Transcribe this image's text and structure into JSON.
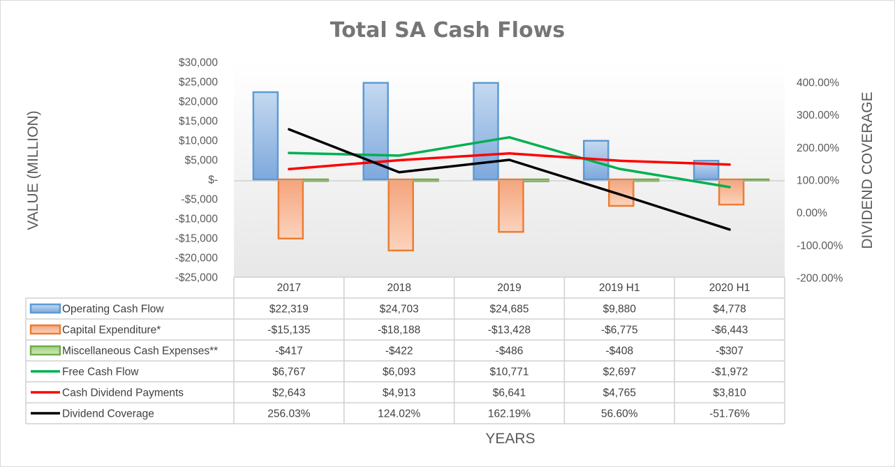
{
  "chart_data": {
    "type": "bar",
    "title": "Total SA Cash Flows",
    "xlabel": "YEARS",
    "ylabel": "VALUE (MILLION)",
    "y2label": "DIVIDEND COVERAGE",
    "categories": [
      "2017",
      "2018",
      "2019",
      "2019 H1",
      "2020 H1"
    ],
    "ylim": [
      -25000,
      30000
    ],
    "y2lim": [
      -200,
      400
    ],
    "yticks": [
      "$30,000",
      "$25,000",
      "$20,000",
      "$15,000",
      "$10,000",
      "$5,000",
      "$-",
      "-$5,000",
      "-$10,000",
      "-$15,000",
      "-$20,000",
      "-$25,000"
    ],
    "y2ticks": [
      "400.00%",
      "300.00%",
      "200.00%",
      "100.00%",
      "0.00%",
      "-100.00%",
      "-200.00%"
    ],
    "bar_series": [
      {
        "name": "Operating Cash Flow",
        "values": [
          22319,
          24703,
          24685,
          9880,
          4778
        ],
        "labels": [
          "$22,319",
          "$24,703",
          "$24,685",
          "$9,880",
          "$4,778"
        ],
        "color": "#5b9bd5",
        "fill": "#a9c7e8"
      },
      {
        "name": "Capital Expenditure*",
        "values": [
          -15135,
          -18188,
          -13428,
          -6775,
          -6443
        ],
        "labels": [
          "-$15,135",
          "-$18,188",
          "-$13,428",
          "-$6,775",
          "-$6,443"
        ],
        "color": "#ed7d31",
        "fill": "#f8c0a0"
      },
      {
        "name": "Miscellaneous Cash Expenses**",
        "values": [
          -417,
          -422,
          -486,
          -408,
          -307
        ],
        "labels": [
          "-$417",
          "-$422",
          "-$486",
          "-$408",
          "-$307"
        ],
        "color": "#70ad47",
        "fill": "#b5d99c"
      }
    ],
    "line_series": [
      {
        "name": "Free Cash Flow",
        "values": [
          6767,
          6093,
          10771,
          2697,
          -1972
        ],
        "labels": [
          "$6,767",
          "$6,093",
          "$10,771",
          "$2,697",
          "-$1,972"
        ],
        "color": "#00b050",
        "axis": "left"
      },
      {
        "name": "Cash Dividend Payments",
        "values": [
          2643,
          4913,
          6641,
          4765,
          3810
        ],
        "labels": [
          "$2,643",
          "$4,913",
          "$6,641",
          "$4,765",
          "$3,810"
        ],
        "color": "#ff0000",
        "axis": "left"
      },
      {
        "name": "Dividend Coverage",
        "values": [
          256.03,
          124.02,
          162.19,
          56.6,
          -51.76
        ],
        "labels": [
          "256.03%",
          "124.02%",
          "162.19%",
          "56.60%",
          "-51.76%"
        ],
        "color": "#000000",
        "axis": "right"
      }
    ],
    "grid": false,
    "legend": "data-table"
  }
}
